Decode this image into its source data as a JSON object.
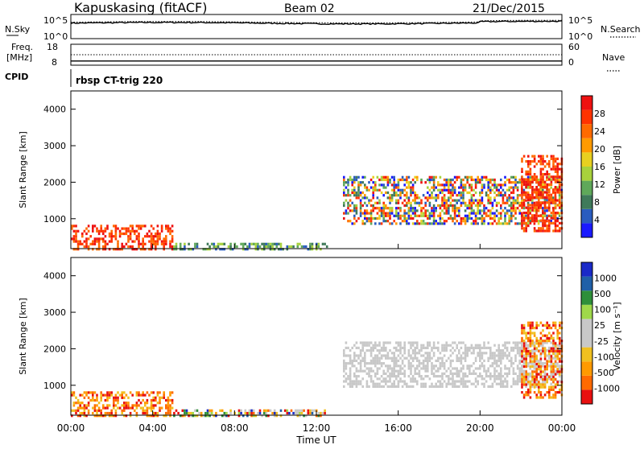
{
  "header": {
    "title": "Kapuskasing (fitACF)",
    "beam": "Beam 02",
    "date": "21/Dec/2015"
  },
  "strips": {
    "noise_left": "N.Sky",
    "noise_right": "N.Search",
    "noise_ticks_left": [
      "10^5",
      "10^0"
    ],
    "noise_ticks_right": [
      "10^5",
      "10^0"
    ],
    "freq_left_lines": [
      "Freq.",
      "[MHz]"
    ],
    "freq_ticks_left": [
      "18",
      "8"
    ],
    "freq_ticks_right": [
      "60",
      "0"
    ],
    "nave_right": "Nave",
    "cpid_left": "CPID",
    "cpid_text": "rbsp CT-trig 220"
  },
  "colors": {
    "power_scale": [
      "#1a1aff",
      "#2a5cbf",
      "#3f7a5a",
      "#5fa85a",
      "#a8d23c",
      "#e8d020",
      "#ff9a00",
      "#ff6a00",
      "#ff3300",
      "#ee1111"
    ],
    "velocity_scale": [
      "#e81010",
      "#ff6a00",
      "#ff9a00",
      "#f0c020",
      "#c8c8c8",
      "#c8c8c8",
      "#9fd84a",
      "#2e8f3a",
      "#2060a8",
      "#1a2ac8"
    ],
    "ground_scatter": "#c8c8c8"
  },
  "chart_data": [
    {
      "type": "line",
      "name": "noise-panel",
      "series": [
        {
          "name": "N.Sky",
          "style": "solid"
        },
        {
          "name": "N.Search",
          "style": "dotted"
        }
      ],
      "ylim_log10": [
        0,
        5
      ],
      "x_range_hours": [
        0,
        24
      ]
    },
    {
      "type": "line",
      "name": "frequency-nave-panel",
      "series": [
        {
          "name": "Freq.",
          "unit": "MHz",
          "ylim": [
            8,
            18
          ],
          "approx_value": 10
        },
        {
          "name": "Nave",
          "style": "dotted",
          "ylim": [
            0,
            60
          ],
          "approx_value": 30
        }
      ],
      "x_range_hours": [
        0,
        24
      ]
    },
    {
      "type": "heatmap",
      "name": "power-panel",
      "ylabel": "Slant Range [km]",
      "yticks": [
        "1000",
        "2000",
        "3000",
        "4000"
      ],
      "ylim": [
        180,
        4500
      ],
      "colorbar": {
        "label": "Power [dB]",
        "ticks": [
          "28",
          "24",
          "20",
          "16",
          "12",
          "8",
          "4"
        ],
        "range": [
          0,
          30
        ]
      },
      "scatter_regions": [
        {
          "t0": 0.0,
          "t1": 5.0,
          "r0": 200,
          "r1": 900,
          "level": "high"
        },
        {
          "t0": 5.0,
          "t1": 12.5,
          "r0": 200,
          "r1": 400,
          "level": "low"
        },
        {
          "t0": 13.3,
          "t1": 24.0,
          "r0": 900,
          "r1": 2200,
          "level": "mixed"
        },
        {
          "t0": 22.0,
          "t1": 24.0,
          "r0": 700,
          "r1": 2800,
          "level": "high"
        }
      ]
    },
    {
      "type": "heatmap",
      "name": "velocity-panel",
      "ylabel": "Slant Range [km]",
      "yticks": [
        "1000",
        "2000",
        "3000",
        "4000"
      ],
      "ylim": [
        180,
        4500
      ],
      "colorbar": {
        "label": "Velocity [m s⁻¹]",
        "ticks": [
          "1000",
          "500",
          "100",
          "25",
          "-25",
          "-100",
          "-500",
          "-1000"
        ],
        "range": [
          -1000,
          1000
        ]
      },
      "scatter_regions": [
        {
          "t0": 0.0,
          "t1": 5.0,
          "r0": 200,
          "r1": 900,
          "level": "negative"
        },
        {
          "t0": 5.0,
          "t1": 12.5,
          "r0": 200,
          "r1": 400,
          "level": "mixed"
        },
        {
          "t0": 13.3,
          "t1": 24.0,
          "r0": 1000,
          "r1": 2200,
          "level": "ground"
        },
        {
          "t0": 22.0,
          "t1": 24.0,
          "r0": 700,
          "r1": 2800,
          "level": "negative"
        }
      ]
    }
  ],
  "xaxis": {
    "label": "Time UT",
    "ticks": [
      "00:00",
      "04:00",
      "08:00",
      "12:00",
      "16:00",
      "20:00",
      "00:00"
    ],
    "range_hours": [
      0,
      24
    ]
  }
}
